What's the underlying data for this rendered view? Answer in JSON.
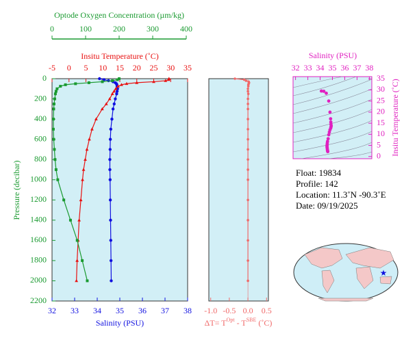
{
  "chart_data": [
    {
      "type": "profile",
      "xlabel": "Salinity (PSU)",
      "x2label": "Insitu Temperature (˚C)",
      "x3label": "Optode Oxygen Concentration (µm/kg)",
      "ylabel": "Pressure (decibar)",
      "xlim": [
        32,
        38
      ],
      "xticks": [
        32,
        33,
        34,
        35,
        36,
        37,
        38
      ],
      "x2lim": [
        -5,
        35
      ],
      "x2ticks": [
        -5,
        0,
        5,
        10,
        15,
        20,
        25,
        30,
        35
      ],
      "x3lim": [
        0,
        400
      ],
      "x3ticks": [
        0,
        100,
        200,
        300,
        400
      ],
      "ylim": [
        0,
        2200
      ],
      "yticks": [
        0,
        200,
        400,
        600,
        800,
        1000,
        1200,
        1400,
        1600,
        1800,
        2000,
        2200
      ],
      "y_inverted": true,
      "y": [
        0,
        10,
        20,
        30,
        40,
        50,
        60,
        75,
        100,
        125,
        150,
        200,
        250,
        300,
        400,
        500,
        600,
        700,
        800,
        900,
        1000,
        1200,
        1400,
        1600,
        1800,
        2000
      ],
      "series": [
        {
          "name": "Salinity",
          "axis": "x",
          "color": "#1010e0",
          "marker": "circle",
          "values": [
            34.1,
            34.3,
            34.5,
            34.7,
            34.8,
            34.85,
            34.87,
            34.88,
            34.9,
            34.88,
            34.86,
            34.8,
            34.75,
            34.7,
            34.65,
            34.6,
            34.58,
            34.57,
            34.56,
            34.56,
            34.57,
            34.58,
            34.59,
            34.6,
            34.61,
            34.62
          ]
        },
        {
          "name": "Temperature",
          "axis": "x2",
          "color": "#e81010",
          "marker": "triangle",
          "values": [
            29.5,
            29.4,
            28.5,
            25,
            20,
            17,
            15.5,
            14.5,
            13.8,
            13.3,
            12.8,
            12,
            11,
            9.8,
            8,
            6.8,
            6,
            5.3,
            4.8,
            4.3,
            4,
            3.5,
            3,
            2.7,
            2.4,
            2.2
          ]
        },
        {
          "name": "Oxygen",
          "axis": "x3",
          "color": "#1a9a30",
          "marker": "square",
          "values": [
            200,
            195,
            180,
            150,
            110,
            70,
            40,
            25,
            15,
            12,
            10,
            8,
            6,
            5,
            4,
            4,
            5,
            7,
            9,
            12,
            17,
            35,
            55,
            75,
            90,
            105
          ]
        }
      ]
    },
    {
      "type": "delta",
      "xlabel": [
        "ΔT= T",
        "Opt",
        " - T",
        "SBE",
        " (˚C)"
      ],
      "xlim": [
        -1.05,
        0.55
      ],
      "xticks": [
        {
          "value": -1.0,
          "label": "-1.0"
        },
        -0.5,
        {
          "value": 0.0,
          "label": "0.0"
        },
        0.5
      ],
      "ylim": [
        0,
        2200
      ],
      "y_inverted": true,
      "color": "#f06868",
      "y": [
        0,
        10,
        20,
        30,
        40,
        50,
        60,
        75,
        100,
        125,
        150,
        200,
        250,
        300,
        400,
        500,
        600,
        700,
        800,
        900,
        1000,
        1200,
        1400,
        1600,
        1800,
        2000
      ],
      "values": [
        -0.35,
        -0.1,
        -0.05,
        0.02,
        0.03,
        0.02,
        0.01,
        0.01,
        0.0,
        0.0,
        0.01,
        0.0,
        0.0,
        0.0,
        0.0,
        0.0,
        0.0,
        0.0,
        0.0,
        0.0,
        0.0,
        0.0,
        0.0,
        0.0,
        0.0,
        0.0
      ]
    },
    {
      "type": "ts",
      "xlabel": "Salinity (PSU)",
      "ylabel": "Insitu Temperature (˚C)",
      "xlim": [
        31.8,
        38.2
      ],
      "xticks": [
        32,
        33,
        34,
        35,
        36,
        37,
        38
      ],
      "ylim": [
        -1,
        36
      ],
      "yticks": [
        0,
        5,
        10,
        15,
        20,
        25,
        30,
        35
      ],
      "color": "#e020c0"
    }
  ],
  "info": {
    "float": "Float:  19834",
    "profile": "Profile:  142",
    "location": "Location:  11.3˚N  -90.3˚E",
    "date": "Date:  09/19/2025"
  }
}
